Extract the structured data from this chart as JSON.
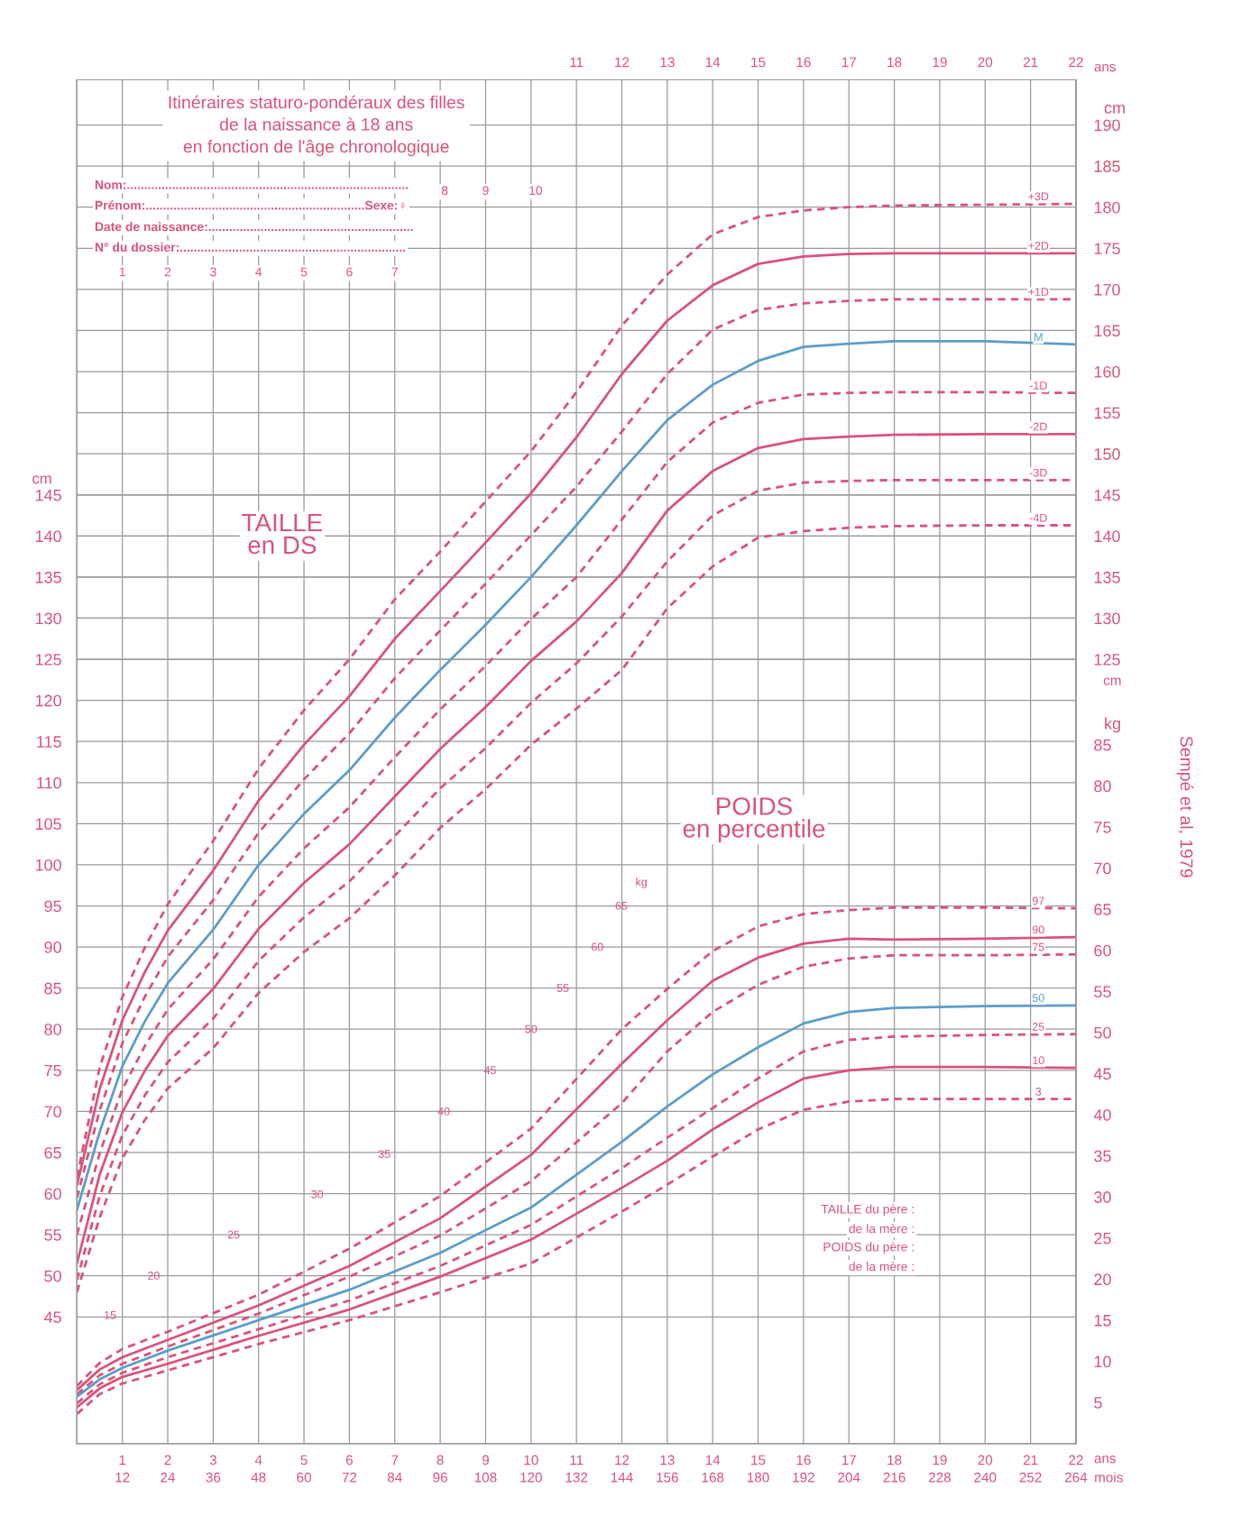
{
  "chart_data": {
    "type": "line",
    "title": "Itinéraires staturo-pondéraux des filles\nde la naissance à 18 ans\nen fonction de l'âge chronologique",
    "xlabel": "ans",
    "x2label": "ans",
    "ylabel": "cm",
    "y2label": "kg",
    "y3label": "cm",
    "xlim": [
      0,
      22
    ],
    "x2lim": [
      0,
      22
    ],
    "ylim": [
      29.6,
      195.5
    ],
    "y2lim": [
      0,
      165.9
    ],
    "y3lim": [
      29.6,
      195.5
    ],
    "xticks": [
      1,
      2,
      3,
      4,
      5,
      6,
      7,
      8,
      9,
      10,
      11,
      12,
      13,
      14,
      15,
      16,
      17,
      18,
      19,
      20,
      21,
      22
    ],
    "x2ticks": [
      11,
      12,
      13,
      14,
      15,
      16,
      17,
      18,
      19,
      20,
      21,
      22
    ],
    "yticks": [
      45,
      50,
      55,
      60,
      65,
      70,
      75,
      80,
      85,
      90,
      95,
      100,
      105,
      110,
      115,
      120,
      125,
      130,
      135,
      140,
      145
    ],
    "y2ticks": [
      5,
      10,
      15,
      20,
      25,
      30,
      35,
      40,
      45,
      50,
      55,
      60,
      65,
      70,
      75,
      80,
      85
    ],
    "y3ticks": [
      125,
      130,
      135,
      140,
      145,
      150,
      155,
      160,
      165,
      170,
      175,
      180,
      185,
      190
    ],
    "grid": true,
    "series": [
      {
        "name": "+3D",
        "color": "#d9537a",
        "line_style": "dashed",
        "axis": "y",
        "x": [
          0,
          0.5,
          1,
          1.5,
          2,
          3,
          4,
          5,
          6,
          7,
          8,
          9,
          10,
          11,
          12,
          13,
          14,
          15,
          16,
          17,
          18,
          20,
          22
        ],
        "values": [
          62,
          75.3,
          83.9,
          90,
          95.2,
          102.9,
          111.7,
          118.8,
          125,
          132.3,
          138.1,
          144.2,
          150.3,
          157.5,
          165.6,
          171.8,
          176.7,
          178.8,
          179.6,
          180,
          180.2,
          180.3,
          180.4
        ]
      },
      {
        "name": "+2D",
        "color": "#d9537a",
        "line_style": "solid",
        "axis": "y",
        "x": [
          0,
          0.5,
          1,
          1.5,
          2,
          3,
          4,
          5,
          6,
          7,
          8,
          9,
          10,
          11,
          12,
          13,
          14,
          15,
          16,
          17,
          18,
          20,
          22
        ],
        "values": [
          61,
          72.7,
          81.1,
          87,
          92,
          99.3,
          107.8,
          114.6,
          120.5,
          127.5,
          133.3,
          139.2,
          145.2,
          152,
          159.7,
          166.2,
          170.5,
          173.1,
          174,
          174.3,
          174.4,
          174.4,
          174.4
        ]
      },
      {
        "name": "+1D",
        "color": "#d9537a",
        "line_style": "dashed",
        "axis": "y",
        "x": [
          0,
          0.5,
          1,
          1.5,
          2,
          3,
          4,
          5,
          6,
          7,
          8,
          9,
          10,
          11,
          12,
          13,
          14,
          15,
          16,
          17,
          18,
          20,
          22
        ],
        "values": [
          59.5,
          70.1,
          78.3,
          84,
          88.8,
          95.7,
          103.9,
          110.4,
          116,
          122.7,
          128.5,
          134.2,
          140.1,
          146,
          152.7,
          159.7,
          165.1,
          167.5,
          168.3,
          168.6,
          168.8,
          168.8,
          168.8
        ]
      },
      {
        "name": "M",
        "color": "#5b9ec9",
        "line_style": "solid",
        "axis": "y",
        "x": [
          0,
          0.5,
          1,
          1.5,
          2,
          3,
          4,
          5,
          6,
          7,
          8,
          9,
          10,
          11,
          12,
          13,
          14,
          15,
          16,
          17,
          18,
          20,
          22
        ],
        "values": [
          58,
          67.5,
          75.5,
          81,
          85.6,
          92.1,
          100,
          106.2,
          111.5,
          117.9,
          123.7,
          129.2,
          135,
          141.3,
          147.9,
          154.1,
          158.4,
          161.3,
          163,
          163.4,
          163.7,
          163.7,
          163.3
        ]
      },
      {
        "name": "-1D",
        "color": "#d9537a",
        "line_style": "dashed",
        "axis": "y",
        "x": [
          0,
          0.5,
          1,
          1.5,
          2,
          3,
          4,
          5,
          6,
          7,
          8,
          9,
          10,
          11,
          12,
          13,
          14,
          15,
          16,
          17,
          18,
          20,
          22
        ],
        "values": [
          55,
          64.9,
          72.7,
          78,
          82.4,
          88.5,
          96.1,
          102,
          107,
          113.1,
          118.9,
          124.2,
          129.9,
          135,
          142,
          149,
          153.8,
          156.2,
          157.2,
          157.4,
          157.5,
          157.5,
          157.4
        ]
      },
      {
        "name": "-2D",
        "color": "#d9537a",
        "line_style": "solid",
        "axis": "y",
        "x": [
          0,
          0.5,
          1,
          1.5,
          2,
          3,
          4,
          5,
          6,
          7,
          8,
          9,
          10,
          11,
          12,
          13,
          14,
          15,
          16,
          17,
          18,
          20,
          22
        ],
        "values": [
          51.5,
          62.3,
          69.9,
          75,
          79.2,
          84.9,
          92.2,
          97.8,
          102.5,
          108.3,
          114.1,
          119.2,
          124.8,
          129.6,
          135.5,
          143.1,
          147.9,
          150.7,
          151.8,
          152.1,
          152.3,
          152.4,
          152.4
        ]
      },
      {
        "name": "-3D",
        "color": "#d9537a",
        "line_style": "dashed",
        "axis": "y",
        "x": [
          0,
          0.5,
          1,
          1.5,
          2,
          3,
          4,
          5,
          6,
          7,
          8,
          9,
          10,
          11,
          12,
          13,
          14,
          15,
          16,
          17,
          18,
          20,
          22
        ],
        "values": [
          49.5,
          59.7,
          67.1,
          72,
          76,
          81.3,
          88.3,
          93.6,
          98,
          103.5,
          109.3,
          114.2,
          119.7,
          124.5,
          130.2,
          136.9,
          142.5,
          145.5,
          146.5,
          146.7,
          146.8,
          146.8,
          146.8
        ]
      },
      {
        "name": "-4D",
        "color": "#d9537a",
        "line_style": "dashed",
        "axis": "y",
        "x": [
          0,
          0.5,
          1,
          1.5,
          2,
          3,
          4,
          5,
          6,
          7,
          8,
          9,
          10,
          11,
          12,
          13,
          14,
          15,
          16,
          17,
          18,
          20,
          22
        ],
        "values": [
          48,
          57.1,
          64.3,
          69,
          72.8,
          77.7,
          84.4,
          89.4,
          93.5,
          98.7,
          104.5,
          109.2,
          114.6,
          119,
          123.7,
          131.2,
          136.3,
          139.8,
          140.6,
          141,
          141.2,
          141.3,
          141.3
        ]
      },
      {
        "name": "97",
        "color": "#d9537a",
        "line_style": "dashed",
        "axis": "y2",
        "x": [
          0,
          0.5,
          1,
          2,
          4,
          6,
          8,
          10,
          12,
          13,
          14,
          15,
          16,
          17,
          18,
          20,
          22
        ],
        "values": [
          7,
          9.8,
          11.5,
          13.6,
          18.1,
          23.7,
          30.1,
          38.3,
          50.4,
          55.3,
          59.9,
          62.9,
          64.4,
          64.9,
          65.2,
          65.2,
          65.1
        ]
      },
      {
        "name": "90",
        "color": "#d9537a",
        "line_style": "solid",
        "axis": "y2",
        "x": [
          0,
          0.5,
          1,
          2,
          4,
          6,
          8,
          10,
          12,
          13,
          14,
          15,
          16,
          17,
          18,
          20,
          22
        ],
        "values": [
          6.5,
          9,
          10.5,
          12.6,
          16.8,
          21.6,
          27.4,
          35.1,
          46.2,
          51.5,
          56.3,
          59.1,
          60.8,
          61.4,
          61.3,
          61.4,
          61.6
        ]
      },
      {
        "name": "75",
        "color": "#d9537a",
        "line_style": "dashed",
        "axis": "y2",
        "x": [
          0,
          0.5,
          1,
          2,
          4,
          6,
          8,
          10,
          12,
          13,
          14,
          15,
          16,
          17,
          18,
          20,
          22
        ],
        "values": [
          6,
          8.3,
          9.7,
          11.8,
          15.8,
          20.3,
          25.3,
          31.9,
          41.4,
          47.7,
          52.5,
          55.8,
          58,
          59,
          59.4,
          59.4,
          59.5
        ]
      },
      {
        "name": "50",
        "color": "#5b9ec9",
        "line_style": "solid",
        "axis": "y2",
        "x": [
          0,
          0.5,
          1,
          2,
          4,
          6,
          8,
          10,
          12,
          13,
          14,
          15,
          16,
          17,
          18,
          20,
          22
        ],
        "values": [
          5.7,
          7.8,
          9.2,
          11.3,
          15,
          18.7,
          23.2,
          28.7,
          36.7,
          41,
          44.9,
          48.2,
          51.1,
          52.5,
          53,
          53.2,
          53.3
        ]
      },
      {
        "name": "25",
        "color": "#d9537a",
        "line_style": "dashed",
        "axis": "y2",
        "x": [
          0,
          0.5,
          1,
          2,
          4,
          6,
          8,
          10,
          12,
          13,
          14,
          15,
          16,
          17,
          18,
          20,
          22
        ],
        "values": [
          4.9,
          7.2,
          8.6,
          10.5,
          13.9,
          17.4,
          21.6,
          26.6,
          33.5,
          37.2,
          40.8,
          44.4,
          47.7,
          49.1,
          49.5,
          49.7,
          49.8
        ]
      },
      {
        "name": "10",
        "color": "#d9537a",
        "line_style": "solid",
        "axis": "y2",
        "x": [
          0,
          0.5,
          1,
          2,
          4,
          6,
          8,
          10,
          12,
          13,
          14,
          15,
          16,
          17,
          18,
          20,
          22
        ],
        "values": [
          4.4,
          6.7,
          8.1,
          9.7,
          13.1,
          16.3,
          20.3,
          24.8,
          31.1,
          34.4,
          38.2,
          41.5,
          44.4,
          45.4,
          45.8,
          45.8,
          45.7
        ]
      },
      {
        "name": "3",
        "color": "#d9537a",
        "line_style": "dashed",
        "axis": "y2",
        "x": [
          0,
          0.5,
          1,
          2,
          4,
          6,
          8,
          10,
          12,
          13,
          14,
          15,
          16,
          17,
          18,
          20,
          22
        ],
        "values": [
          3.6,
          6,
          7.3,
          8.9,
          12.1,
          15,
          18.4,
          21.9,
          28.2,
          31.5,
          34.9,
          38.2,
          40.6,
          41.6,
          41.9,
          41.9,
          41.9
        ]
      }
    ],
    "annotations": [
      "Nom:.................................................................................",
      "Prénom:...............................................................Sexe:♀",
      "Date de naissance:...........................................................",
      "N° du dossier:.................................................................",
      "1",
      "2",
      "3",
      "4",
      "5",
      "6",
      "7",
      "8",
      "9",
      "10",
      "TAILLE\nen DS",
      "POIDS\nen percentile",
      "15",
      "20",
      "25",
      "30",
      "35",
      "40",
      "45",
      "50",
      "55",
      "60",
      "65",
      "kg",
      "TAILLE du père :",
      "de la mère :",
      "POIDS du père :",
      "de la mère :",
      "cm",
      "Sempé et al, 1979",
      "12",
      "24",
      "36",
      "48",
      "60",
      "72",
      "84",
      "96",
      "108",
      "120",
      "132",
      "144",
      "156",
      "168",
      "180",
      "192",
      "204",
      "216",
      "228",
      "240",
      "252",
      "264",
      "mois"
    ]
  }
}
